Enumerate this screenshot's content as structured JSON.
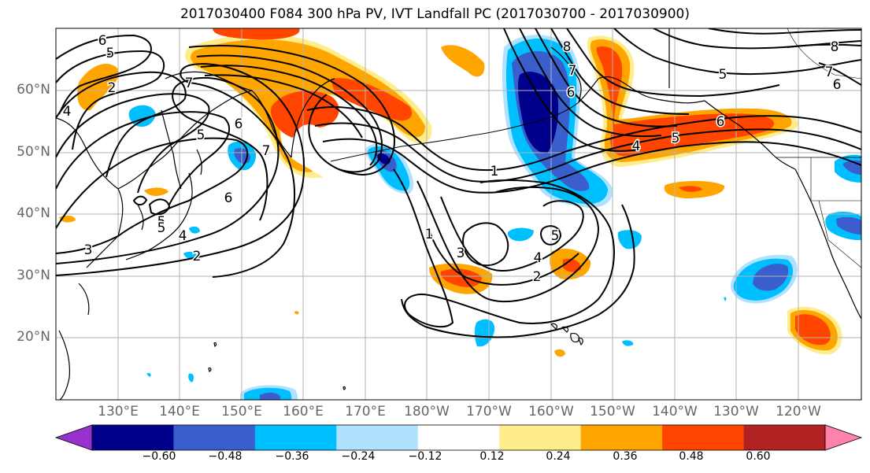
{
  "title": "2017030400 F084 300 hPa PV, IVT Landfall PC (2017030700 - 2017030900)",
  "axes": {
    "lat_labels": [
      "60°N",
      "50°N",
      "40°N",
      "30°N",
      "20°N"
    ],
    "lon_labels": [
      "130°E",
      "140°E",
      "150°E",
      "160°E",
      "170°E",
      "180°W",
      "170°W",
      "160°W",
      "150°W",
      "140°W",
      "130°W",
      "120°W"
    ]
  },
  "colorbar": {
    "ticks": [
      "−0.60",
      "−0.48",
      "−0.36",
      "−0.24",
      "−0.12",
      "0.12",
      "0.24",
      "0.36",
      "0.48",
      "0.60"
    ],
    "colors": [
      "#9932cc",
      "#00008b",
      "#3a5fcd",
      "#00bfff",
      "#b0e2ff",
      "#ffffff",
      "#ffec8b",
      "#ffa500",
      "#ff4500",
      "#b22222",
      "#ff82ab"
    ]
  },
  "contour_labels": [
    "6",
    "5",
    "2",
    "4",
    "5",
    "7",
    "6",
    "5",
    "4",
    "3",
    "2",
    "7",
    "6",
    "5",
    "1",
    "1",
    "3",
    "4",
    "2",
    "5",
    "7",
    "6",
    "8",
    "4",
    "5",
    "6",
    "5",
    "7",
    "6",
    "8"
  ],
  "colors": {
    "coast": "#000000",
    "grid": "#b3b3b3",
    "contour": "#000000"
  }
}
